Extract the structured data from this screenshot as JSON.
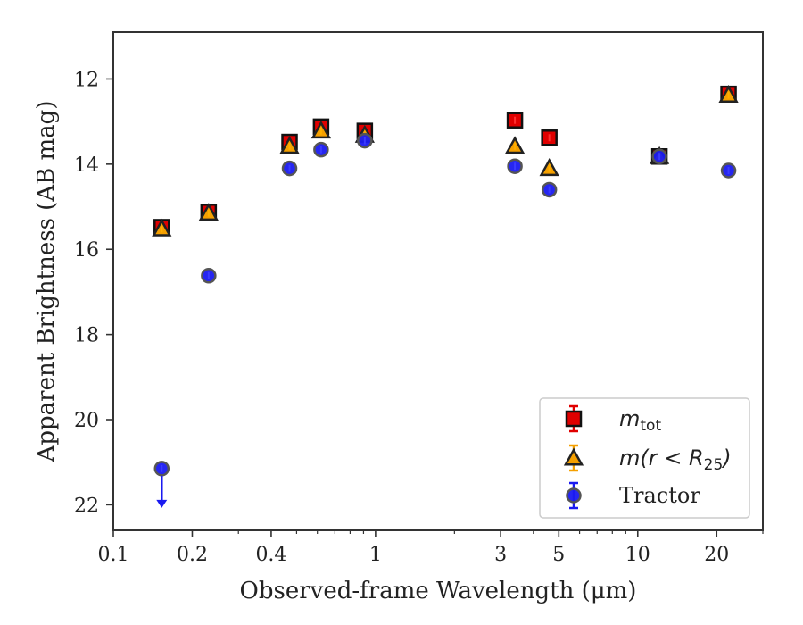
{
  "chart_data": {
    "type": "scatter",
    "xlabel": "Observed-frame Wavelength (μm)",
    "ylabel": "Apparent Brightness (AB mag)",
    "xscale": "log",
    "xlim": [
      0.1,
      30
    ],
    "ylim": [
      22.6,
      10.9
    ],
    "y_inverted": true,
    "xticks": [
      0.1,
      0.2,
      0.4,
      1,
      3,
      5,
      10,
      20
    ],
    "xtick_labels": [
      "0.1",
      "0.2",
      "0.4",
      "1",
      "3",
      "5",
      "10",
      "20"
    ],
    "yticks": [
      12,
      14,
      16,
      18,
      20,
      22
    ],
    "ytick_labels": [
      "12",
      "14",
      "16",
      "18",
      "20",
      "22"
    ],
    "legend_position": "lower-right",
    "series": [
      {
        "name": "m_tot",
        "legend_main": "m",
        "legend_sub": "tot",
        "marker": "square",
        "color": "#e00000",
        "points": [
          {
            "x": 0.153,
            "y": 15.48
          },
          {
            "x": 0.231,
            "y": 15.12
          },
          {
            "x": 0.47,
            "y": 13.48
          },
          {
            "x": 0.62,
            "y": 13.12
          },
          {
            "x": 0.91,
            "y": 13.22
          },
          {
            "x": 3.4,
            "y": 12.97
          },
          {
            "x": 4.6,
            "y": 13.38
          },
          {
            "x": 12.1,
            "y": 13.82
          },
          {
            "x": 22.2,
            "y": 12.35
          }
        ]
      },
      {
        "name": "m(r<R25)",
        "legend_main": "m(r < R",
        "legend_sub": "25",
        "legend_end": ")",
        "marker": "triangle",
        "color": "#f5a000",
        "points": [
          {
            "x": 0.153,
            "y": 15.52
          },
          {
            "x": 0.231,
            "y": 15.15
          },
          {
            "x": 0.47,
            "y": 13.58
          },
          {
            "x": 0.62,
            "y": 13.22
          },
          {
            "x": 0.91,
            "y": 13.32
          },
          {
            "x": 3.4,
            "y": 13.58
          },
          {
            "x": 4.6,
            "y": 14.1
          },
          {
            "x": 12.1,
            "y": 13.82
          },
          {
            "x": 22.2,
            "y": 12.38
          }
        ]
      },
      {
        "name": "Tractor",
        "marker": "circle",
        "color": "#1a1af0",
        "points": [
          {
            "x": 0.153,
            "y": 21.15,
            "upper_limit": true
          },
          {
            "x": 0.231,
            "y": 16.62
          },
          {
            "x": 0.47,
            "y": 14.1
          },
          {
            "x": 0.62,
            "y": 13.66
          },
          {
            "x": 0.91,
            "y": 13.45
          },
          {
            "x": 3.4,
            "y": 14.05
          },
          {
            "x": 4.6,
            "y": 14.6
          },
          {
            "x": 12.1,
            "y": 13.82
          },
          {
            "x": 22.2,
            "y": 14.15
          }
        ]
      }
    ]
  }
}
